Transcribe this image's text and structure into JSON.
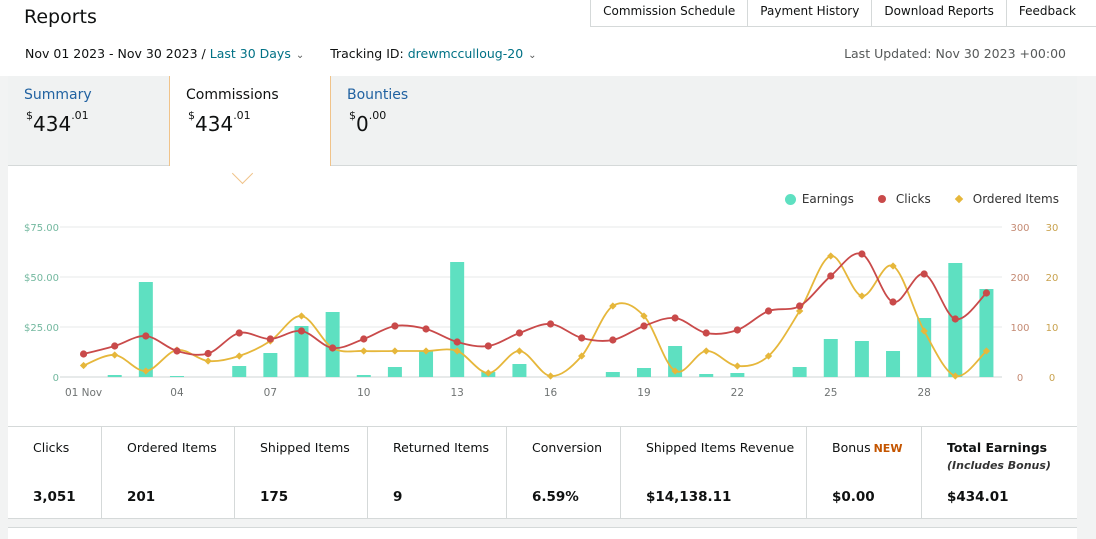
{
  "page": {
    "title": "Reports"
  },
  "top_nav": [
    {
      "label": "Commission Schedule"
    },
    {
      "label": "Payment History"
    },
    {
      "label": "Download Reports"
    },
    {
      "label": "Feedback"
    }
  ],
  "filters": {
    "date_range": "Nov 01 2023 - Nov 30 2023 /",
    "period_label": "Last 30 Days",
    "tracking_label": "Tracking ID:",
    "tracking_id": "drewmcculloug-20",
    "last_updated": "Last Updated: Nov 30 2023 +00:00"
  },
  "summary_tabs": [
    {
      "label": "Summary",
      "currency": "$",
      "whole": "434",
      "cents": ".01"
    },
    {
      "label": "Commissions",
      "currency": "$",
      "whole": "434",
      "cents": ".01"
    },
    {
      "label": "Bounties",
      "currency": "$",
      "whole": "0",
      "cents": ".00"
    }
  ],
  "chart_data": {
    "type": "bar",
    "x": [
      "01 Nov",
      "02",
      "03",
      "04",
      "05",
      "06",
      "07",
      "08",
      "09",
      "10",
      "11",
      "12",
      "13",
      "14",
      "15",
      "16",
      "17",
      "18",
      "19",
      "20",
      "21",
      "22",
      "23",
      "24",
      "25",
      "26",
      "27",
      "28",
      "29",
      "30"
    ],
    "x_tick_labels": [
      {
        "index": 0,
        "label": "01 Nov"
      },
      {
        "index": 3,
        "label": "04"
      },
      {
        "index": 6,
        "label": "07"
      },
      {
        "index": 9,
        "label": "10"
      },
      {
        "index": 12,
        "label": "13"
      },
      {
        "index": 15,
        "label": "16"
      },
      {
        "index": 18,
        "label": "19"
      },
      {
        "index": 21,
        "label": "22"
      },
      {
        "index": 24,
        "label": "25"
      },
      {
        "index": 27,
        "label": "28"
      }
    ],
    "series": [
      {
        "name": "Earnings",
        "type": "bar",
        "axis": "left",
        "color": "#5ee0c1",
        "values": [
          0,
          1,
          47.5,
          0.5,
          0,
          5.5,
          12,
          25.5,
          32.5,
          1,
          5,
          13,
          57.5,
          2.5,
          6.5,
          0,
          0,
          2.5,
          4.5,
          15.5,
          1.5,
          2,
          0,
          5,
          19,
          18,
          13,
          29.5,
          57,
          44
        ]
      },
      {
        "name": "Clicks",
        "type": "line",
        "axis": "right1",
        "color": "#c94a4a",
        "values": [
          46,
          62,
          82,
          52,
          47,
          88,
          76,
          92,
          58,
          76,
          102,
          96,
          70,
          62,
          88,
          106,
          78,
          74,
          102,
          118,
          88,
          94,
          132,
          142,
          202,
          246,
          150,
          206,
          116,
          168
        ]
      },
      {
        "name": "Ordered Items",
        "type": "line",
        "axis": "right2",
        "color": "#e6b73b",
        "values": [
          2.3,
          4.4,
          1.2,
          5.4,
          3.2,
          4.2,
          7.2,
          12.2,
          5.8,
          5.2,
          5.2,
          5.2,
          5.2,
          0.8,
          5.2,
          0.2,
          4.2,
          14.2,
          12.2,
          1.2,
          5.2,
          2.2,
          4.2,
          13.2,
          24.2,
          16.2,
          22.2,
          9.2,
          0.2,
          5.2
        ]
      }
    ],
    "y_axes": {
      "left": {
        "ticks": [
          "0",
          "$25.00",
          "$50.00",
          "$75.00"
        ],
        "range": [
          0,
          75
        ]
      },
      "right1": {
        "ticks": [
          "0",
          "100",
          "200",
          "300"
        ],
        "range": [
          0,
          300
        ]
      },
      "right2": {
        "ticks": [
          "0",
          "10",
          "20",
          "30"
        ],
        "range": [
          0,
          30
        ]
      }
    },
    "grid": true,
    "legend_position": "top-right"
  },
  "stats": [
    {
      "label": "Clicks",
      "value": "3,051"
    },
    {
      "label": "Ordered Items",
      "value": "201"
    },
    {
      "label": "Shipped Items",
      "value": "175"
    },
    {
      "label": "Returned Items",
      "value": "9"
    },
    {
      "label": "Conversion",
      "value": "6.59%"
    },
    {
      "label": "Shipped Items Revenue",
      "value": "$14,138.11"
    },
    {
      "label": "Bonus",
      "badge": "NEW",
      "value": "$0.00"
    },
    {
      "label": "Total Earnings",
      "sublabel": "(Includes Bonus)",
      "value": "$434.01"
    }
  ]
}
